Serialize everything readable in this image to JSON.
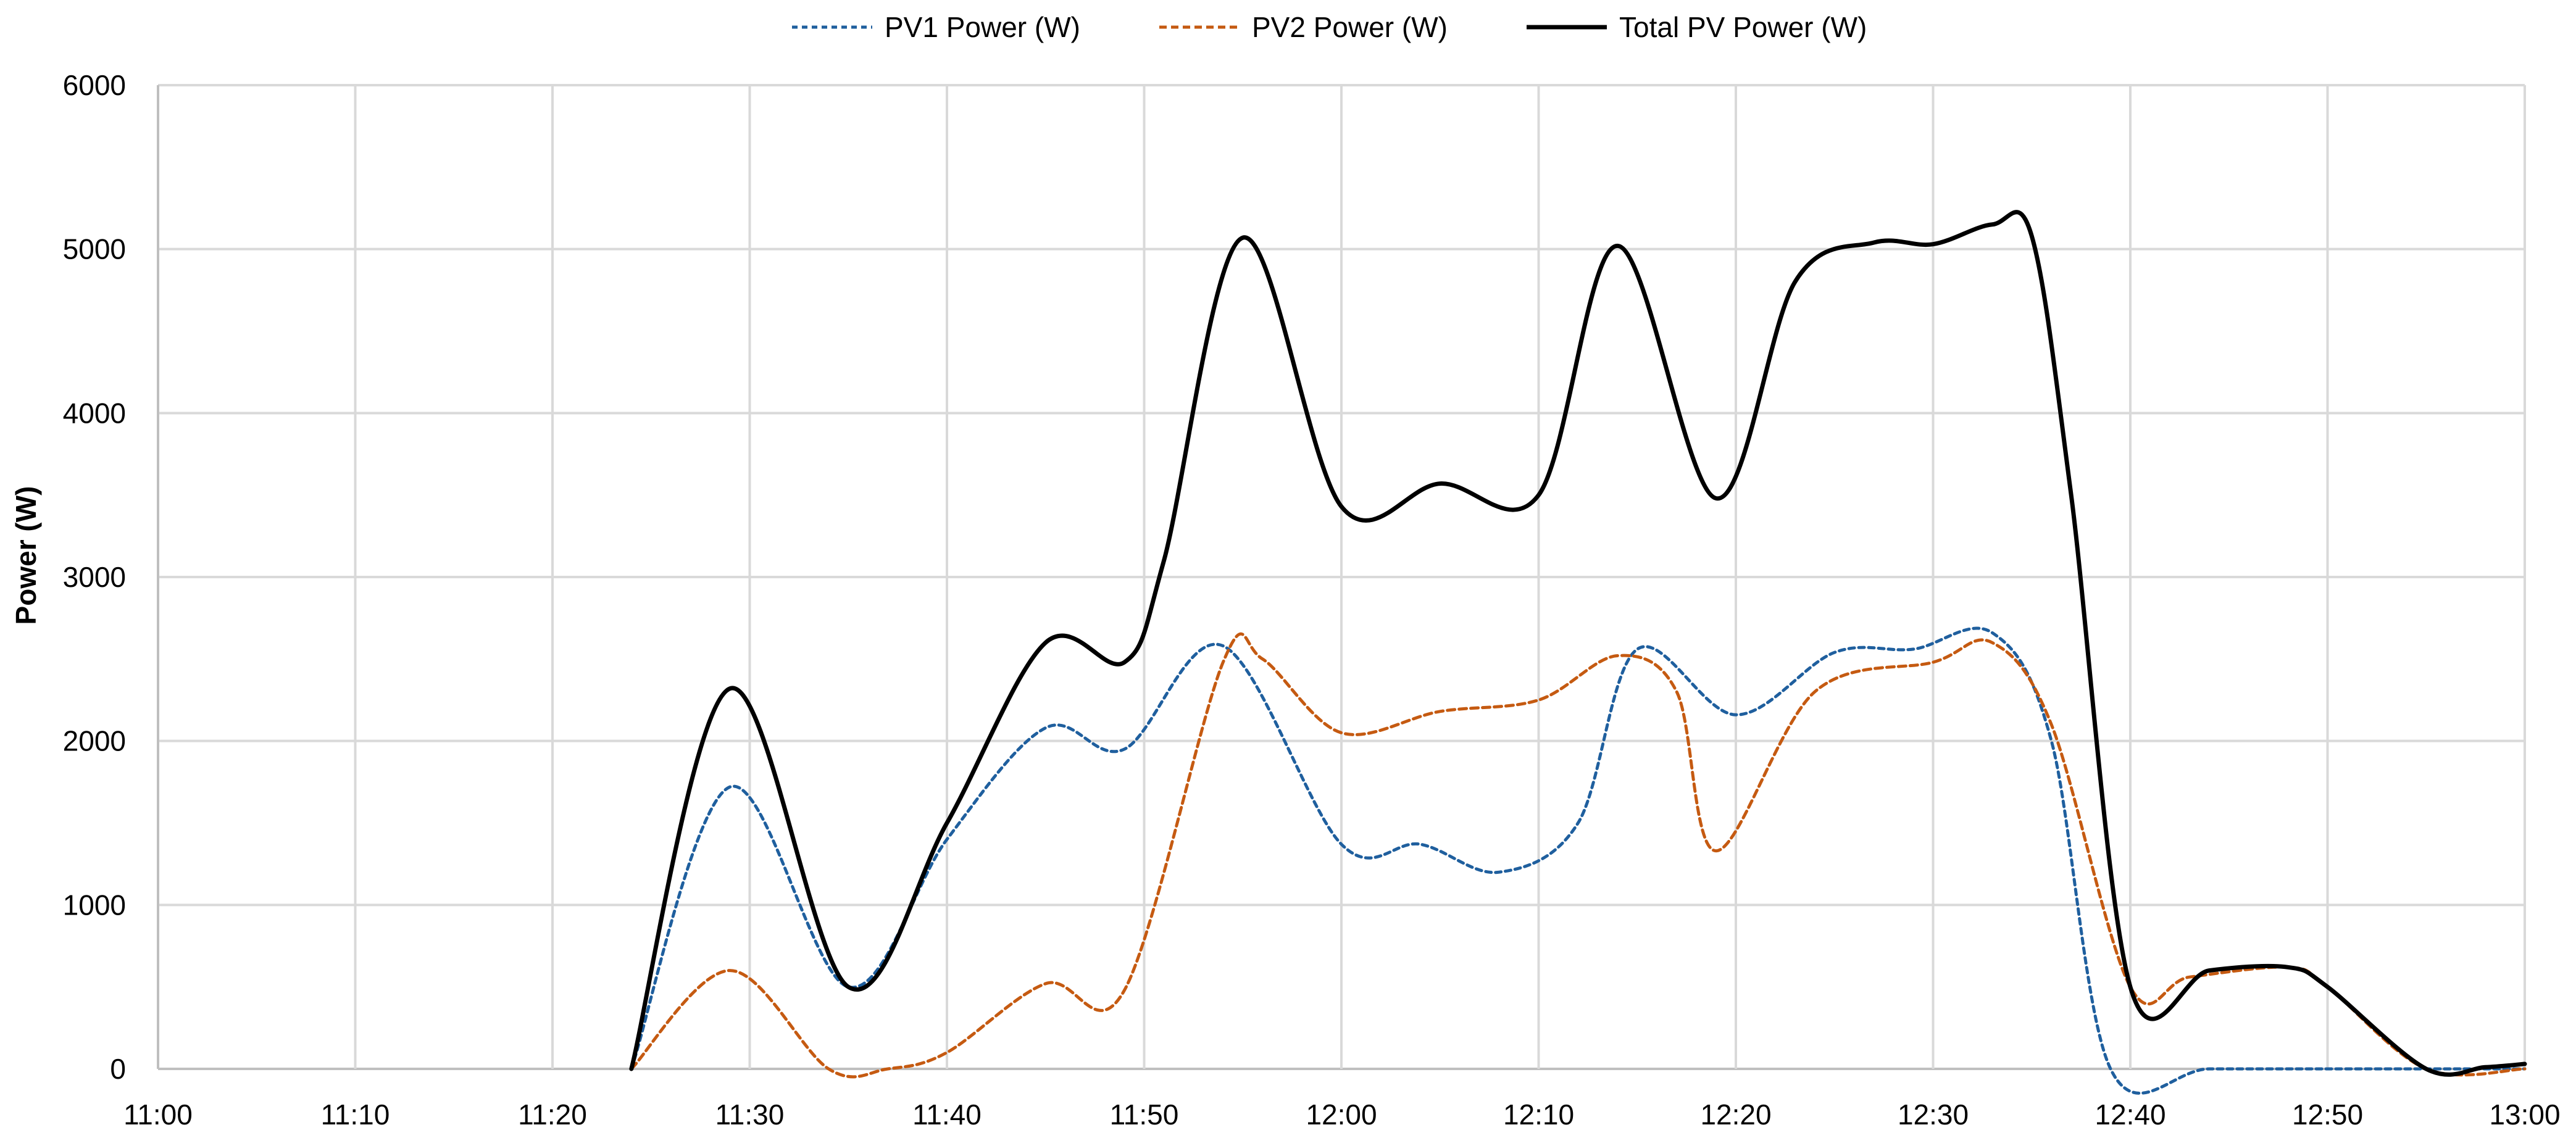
{
  "chart_data": {
    "type": "line",
    "title": "",
    "xlabel": "",
    "ylabel": "Power (W)",
    "x_ticks": [
      "11:00",
      "11:10",
      "11:20",
      "11:30",
      "11:40",
      "11:50",
      "12:00",
      "12:10",
      "12:20",
      "12:30",
      "12:40",
      "12:50",
      "13:00"
    ],
    "xlim": [
      "11:00",
      "13:00"
    ],
    "y_ticks": [
      0,
      1000,
      2000,
      3000,
      4000,
      5000,
      6000
    ],
    "ylim": [
      0,
      6000
    ],
    "grid": true,
    "legend_position": "top",
    "series": [
      {
        "name": "PV1 Power (W)",
        "color": "#1f5f9e",
        "style": "dashed",
        "points": [
          [
            "11:24",
            0
          ],
          [
            "11:29",
            1720
          ],
          [
            "11:35",
            500
          ],
          [
            "11:40",
            1400
          ],
          [
            "11:45",
            2080
          ],
          [
            "11:49",
            1950
          ],
          [
            "11:54",
            2580
          ],
          [
            "12:00",
            1370
          ],
          [
            "12:04",
            1370
          ],
          [
            "12:08",
            1200
          ],
          [
            "12:12",
            1500
          ],
          [
            "12:15",
            2560
          ],
          [
            "12:20",
            2160
          ],
          [
            "12:25",
            2540
          ],
          [
            "12:29",
            2560
          ],
          [
            "12:33",
            2660
          ],
          [
            "12:36",
            2000
          ],
          [
            "12:39",
            0
          ],
          [
            "12:44",
            0
          ],
          [
            "12:50",
            0
          ],
          [
            "12:55",
            0
          ],
          [
            "13:00",
            0
          ]
        ]
      },
      {
        "name": "PV2 Power (W)",
        "color": "#c55a11",
        "style": "dashed",
        "points": [
          [
            "11:24",
            0
          ],
          [
            "11:29",
            600
          ],
          [
            "11:34",
            0
          ],
          [
            "11:37",
            0
          ],
          [
            "11:40",
            100
          ],
          [
            "11:45",
            520
          ],
          [
            "11:49",
            480
          ],
          [
            "11:54",
            2480
          ],
          [
            "11:56",
            2500
          ],
          [
            "12:00",
            2050
          ],
          [
            "12:05",
            2180
          ],
          [
            "12:10",
            2250
          ],
          [
            "12:14",
            2520
          ],
          [
            "12:17",
            2300
          ],
          [
            "12:19",
            1330
          ],
          [
            "12:24",
            2300
          ],
          [
            "12:30",
            2480
          ],
          [
            "12:33",
            2600
          ],
          [
            "12:36",
            2100
          ],
          [
            "12:40",
            500
          ],
          [
            "12:43",
            560
          ],
          [
            "12:48",
            620
          ],
          [
            "12:50",
            500
          ],
          [
            "12:55",
            0
          ],
          [
            "13:00",
            0
          ]
        ]
      },
      {
        "name": "Total PV Power (W)",
        "color": "#000000",
        "style": "solid",
        "points": [
          [
            "11:24",
            0
          ],
          [
            "11:29",
            2320
          ],
          [
            "11:35",
            500
          ],
          [
            "11:40",
            1500
          ],
          [
            "11:45",
            2600
          ],
          [
            "11:49",
            2480
          ],
          [
            "11:51",
            3100
          ],
          [
            "11:55",
            5070
          ],
          [
            "12:00",
            3430
          ],
          [
            "12:05",
            3570
          ],
          [
            "12:10",
            3500
          ],
          [
            "12:14",
            5020
          ],
          [
            "12:19",
            3480
          ],
          [
            "12:23",
            4800
          ],
          [
            "12:27",
            5040
          ],
          [
            "12:30",
            5030
          ],
          [
            "12:33",
            5150
          ],
          [
            "12:35",
            5080
          ],
          [
            "12:37",
            3500
          ],
          [
            "12:40",
            500
          ],
          [
            "12:44",
            600
          ],
          [
            "12:48",
            620
          ],
          [
            "12:50",
            500
          ],
          [
            "12:55",
            0
          ],
          [
            "12:58",
            10
          ],
          [
            "13:00",
            30
          ]
        ]
      }
    ]
  }
}
